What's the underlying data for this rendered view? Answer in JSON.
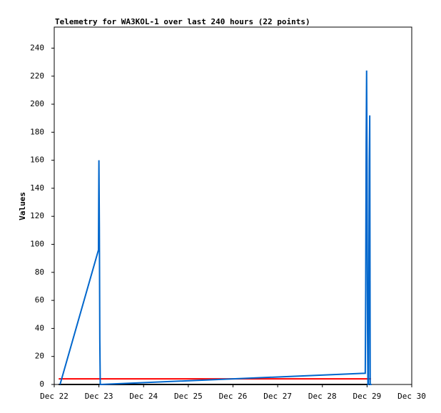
{
  "chart_data": {
    "type": "line",
    "title": "Telemetry for WA3KOL-1 over last 240 hours (22 points)",
    "y_label": "Values",
    "xlim": [
      0,
      8
    ],
    "xticks": [
      {
        "value": 0,
        "label": "Dec 22"
      },
      {
        "value": 1,
        "label": "Dec 23"
      },
      {
        "value": 2,
        "label": "Dec 24"
      },
      {
        "value": 3,
        "label": "Dec 25"
      },
      {
        "value": 4,
        "label": "Dec 26"
      },
      {
        "value": 5,
        "label": "Dec 27"
      },
      {
        "value": 6,
        "label": "Dec 28"
      },
      {
        "value": 7,
        "label": "Dec 29"
      },
      {
        "value": 8,
        "label": "Dec 30"
      }
    ],
    "ylim": [
      0,
      255
    ],
    "yticks": [
      0,
      20,
      40,
      60,
      80,
      100,
      120,
      140,
      160,
      180,
      200,
      220,
      240
    ],
    "series": [
      {
        "color": "#000000",
        "x": [
          0.1,
          7.09
        ],
        "values": [
          0,
          0
        ]
      },
      {
        "color": "#ff0000",
        "x": [
          0.1,
          7.09
        ],
        "values": [
          4,
          4
        ]
      },
      {
        "color": "#0066cc",
        "x": [
          0.13,
          0.99,
          1.0,
          1.01,
          1.02,
          1.03,
          1.04,
          6.96,
          6.97,
          6.98,
          6.99,
          7.0,
          7.01,
          7.02,
          7.03,
          7.04,
          7.05,
          7.06,
          7.07,
          7.08,
          7.09,
          7.1
        ],
        "values": [
          0,
          96,
          160,
          112,
          32,
          0,
          0,
          8,
          68,
          172,
          224,
          152,
          40,
          0,
          0,
          80,
          160,
          192,
          0,
          0,
          0,
          0
        ]
      }
    ]
  }
}
